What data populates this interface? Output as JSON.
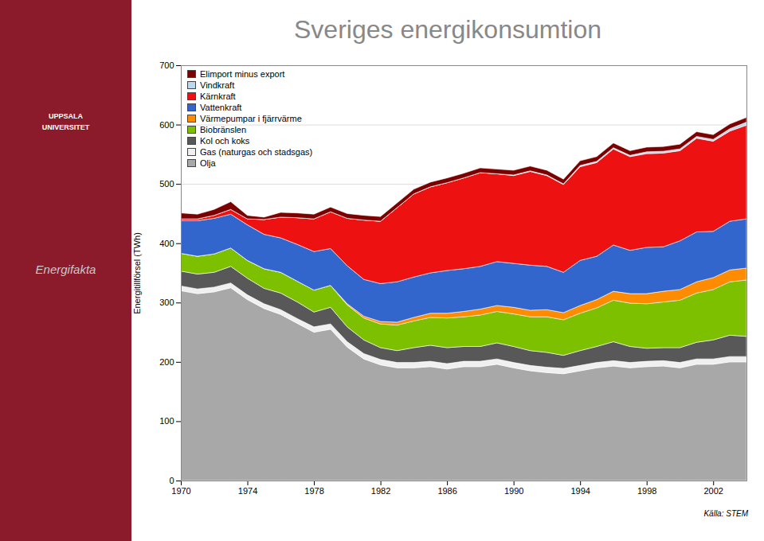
{
  "chart_data": {
    "type": "area",
    "title": "Sveriges energikonsumtion",
    "ylabel": "Energitillförsel (TWh)",
    "annotations": [
      "Källa: STEM",
      "UPPSALA\nUNIVERSITET",
      "Energifakta"
    ],
    "x": [
      1970,
      1971,
      1972,
      1973,
      1974,
      1975,
      1976,
      1977,
      1978,
      1979,
      1980,
      1981,
      1982,
      1983,
      1984,
      1985,
      1986,
      1987,
      1988,
      1989,
      1990,
      1991,
      1992,
      1993,
      1994,
      1995,
      1996,
      1997,
      1998,
      1999,
      2000,
      2001,
      2002,
      2003,
      2004
    ],
    "series": [
      {
        "name": "Olja",
        "color": "#A8A8A8",
        "values": [
          320,
          315,
          318,
          325,
          305,
          290,
          280,
          265,
          250,
          255,
          225,
          205,
          195,
          190,
          190,
          192,
          188,
          192,
          192,
          196,
          190,
          185,
          182,
          180,
          185,
          190,
          193,
          190,
          192,
          193,
          190,
          196,
          196,
          200,
          200
        ]
      },
      {
        "name": "Gas (naturgas och stadsgas)",
        "color": "#F0F0F0",
        "values": [
          8,
          8,
          8,
          8,
          8,
          8,
          8,
          8,
          9,
          9,
          9,
          9,
          9,
          9,
          9,
          9,
          9,
          9,
          9,
          9,
          9,
          9,
          9,
          9,
          9,
          9,
          9,
          9,
          9,
          9,
          9,
          9,
          9,
          9,
          9
        ]
      },
      {
        "name": "Kol och koks",
        "color": "#585858",
        "values": [
          25,
          25,
          25,
          28,
          28,
          26,
          28,
          28,
          25,
          28,
          25,
          23,
          20,
          20,
          25,
          27,
          27,
          25,
          25,
          27,
          27,
          25,
          25,
          22,
          25,
          27,
          32,
          27,
          22,
          22,
          25,
          28,
          32,
          36,
          34
        ]
      },
      {
        "name": "Biobränslen",
        "color": "#7DC000",
        "values": [
          30,
          30,
          31,
          31,
          30,
          33,
          35,
          35,
          37,
          37,
          37,
          37,
          40,
          43,
          45,
          47,
          50,
          50,
          53,
          53,
          55,
          57,
          60,
          60,
          63,
          65,
          70,
          73,
          75,
          77,
          80,
          83,
          85,
          90,
          95
        ]
      },
      {
        "name": "Värmepumpar i fjärrvärme",
        "color": "#FF8C00",
        "values": [
          0,
          0,
          0,
          0,
          0,
          0,
          0,
          0,
          0,
          0,
          2,
          3,
          4,
          5,
          6,
          7,
          8,
          9,
          10,
          10,
          11,
          11,
          12,
          12,
          13,
          14,
          15,
          16,
          17,
          18,
          18,
          19,
          20,
          20,
          20
        ]
      },
      {
        "name": "Vattenkraft",
        "color": "#3366CC",
        "values": [
          55,
          60,
          60,
          57,
          60,
          58,
          58,
          62,
          65,
          62,
          64,
          62,
          64,
          68,
          68,
          68,
          72,
          72,
          72,
          74,
          74,
          76,
          73,
          68,
          76,
          73,
          78,
          73,
          78,
          75,
          82,
          84,
          78,
          82,
          83
        ]
      },
      {
        "name": "Kärnkraft",
        "color": "#EE1111",
        "values": [
          3,
          3,
          5,
          8,
          10,
          25,
          35,
          45,
          55,
          62,
          80,
          100,
          105,
          125,
          140,
          145,
          148,
          153,
          158,
          148,
          148,
          158,
          153,
          148,
          158,
          158,
          162,
          158,
          158,
          158,
          152,
          158,
          152,
          152,
          158
        ]
      },
      {
        "name": "Vindkraft",
        "color": "#BDD7EE",
        "values": [
          0,
          0,
          0,
          0,
          0,
          0,
          0,
          0,
          0,
          0,
          0,
          0,
          0,
          0,
          0,
          0,
          0,
          0,
          0,
          0,
          1,
          1,
          1,
          1,
          2,
          2,
          2,
          2,
          3,
          3,
          3,
          3,
          3,
          4,
          5
        ]
      },
      {
        "name": "Elimport minus export",
        "color": "#7B0000",
        "values": [
          10,
          8,
          10,
          13,
          6,
          4,
          8,
          8,
          8,
          8,
          8,
          8,
          8,
          8,
          8,
          8,
          8,
          8,
          8,
          8,
          8,
          8,
          8,
          8,
          8,
          8,
          8,
          8,
          8,
          8,
          8,
          8,
          8,
          8,
          8
        ]
      }
    ],
    "xlim": [
      1970,
      2004
    ],
    "xticks": [
      1970,
      1974,
      1978,
      1982,
      1986,
      1990,
      1994,
      1998,
      2002
    ],
    "ylim": [
      0,
      700
    ],
    "yticks": [
      0,
      100,
      200,
      300,
      400,
      500,
      600,
      700
    ],
    "stacked": true,
    "grid": true,
    "legend": "upper left"
  }
}
